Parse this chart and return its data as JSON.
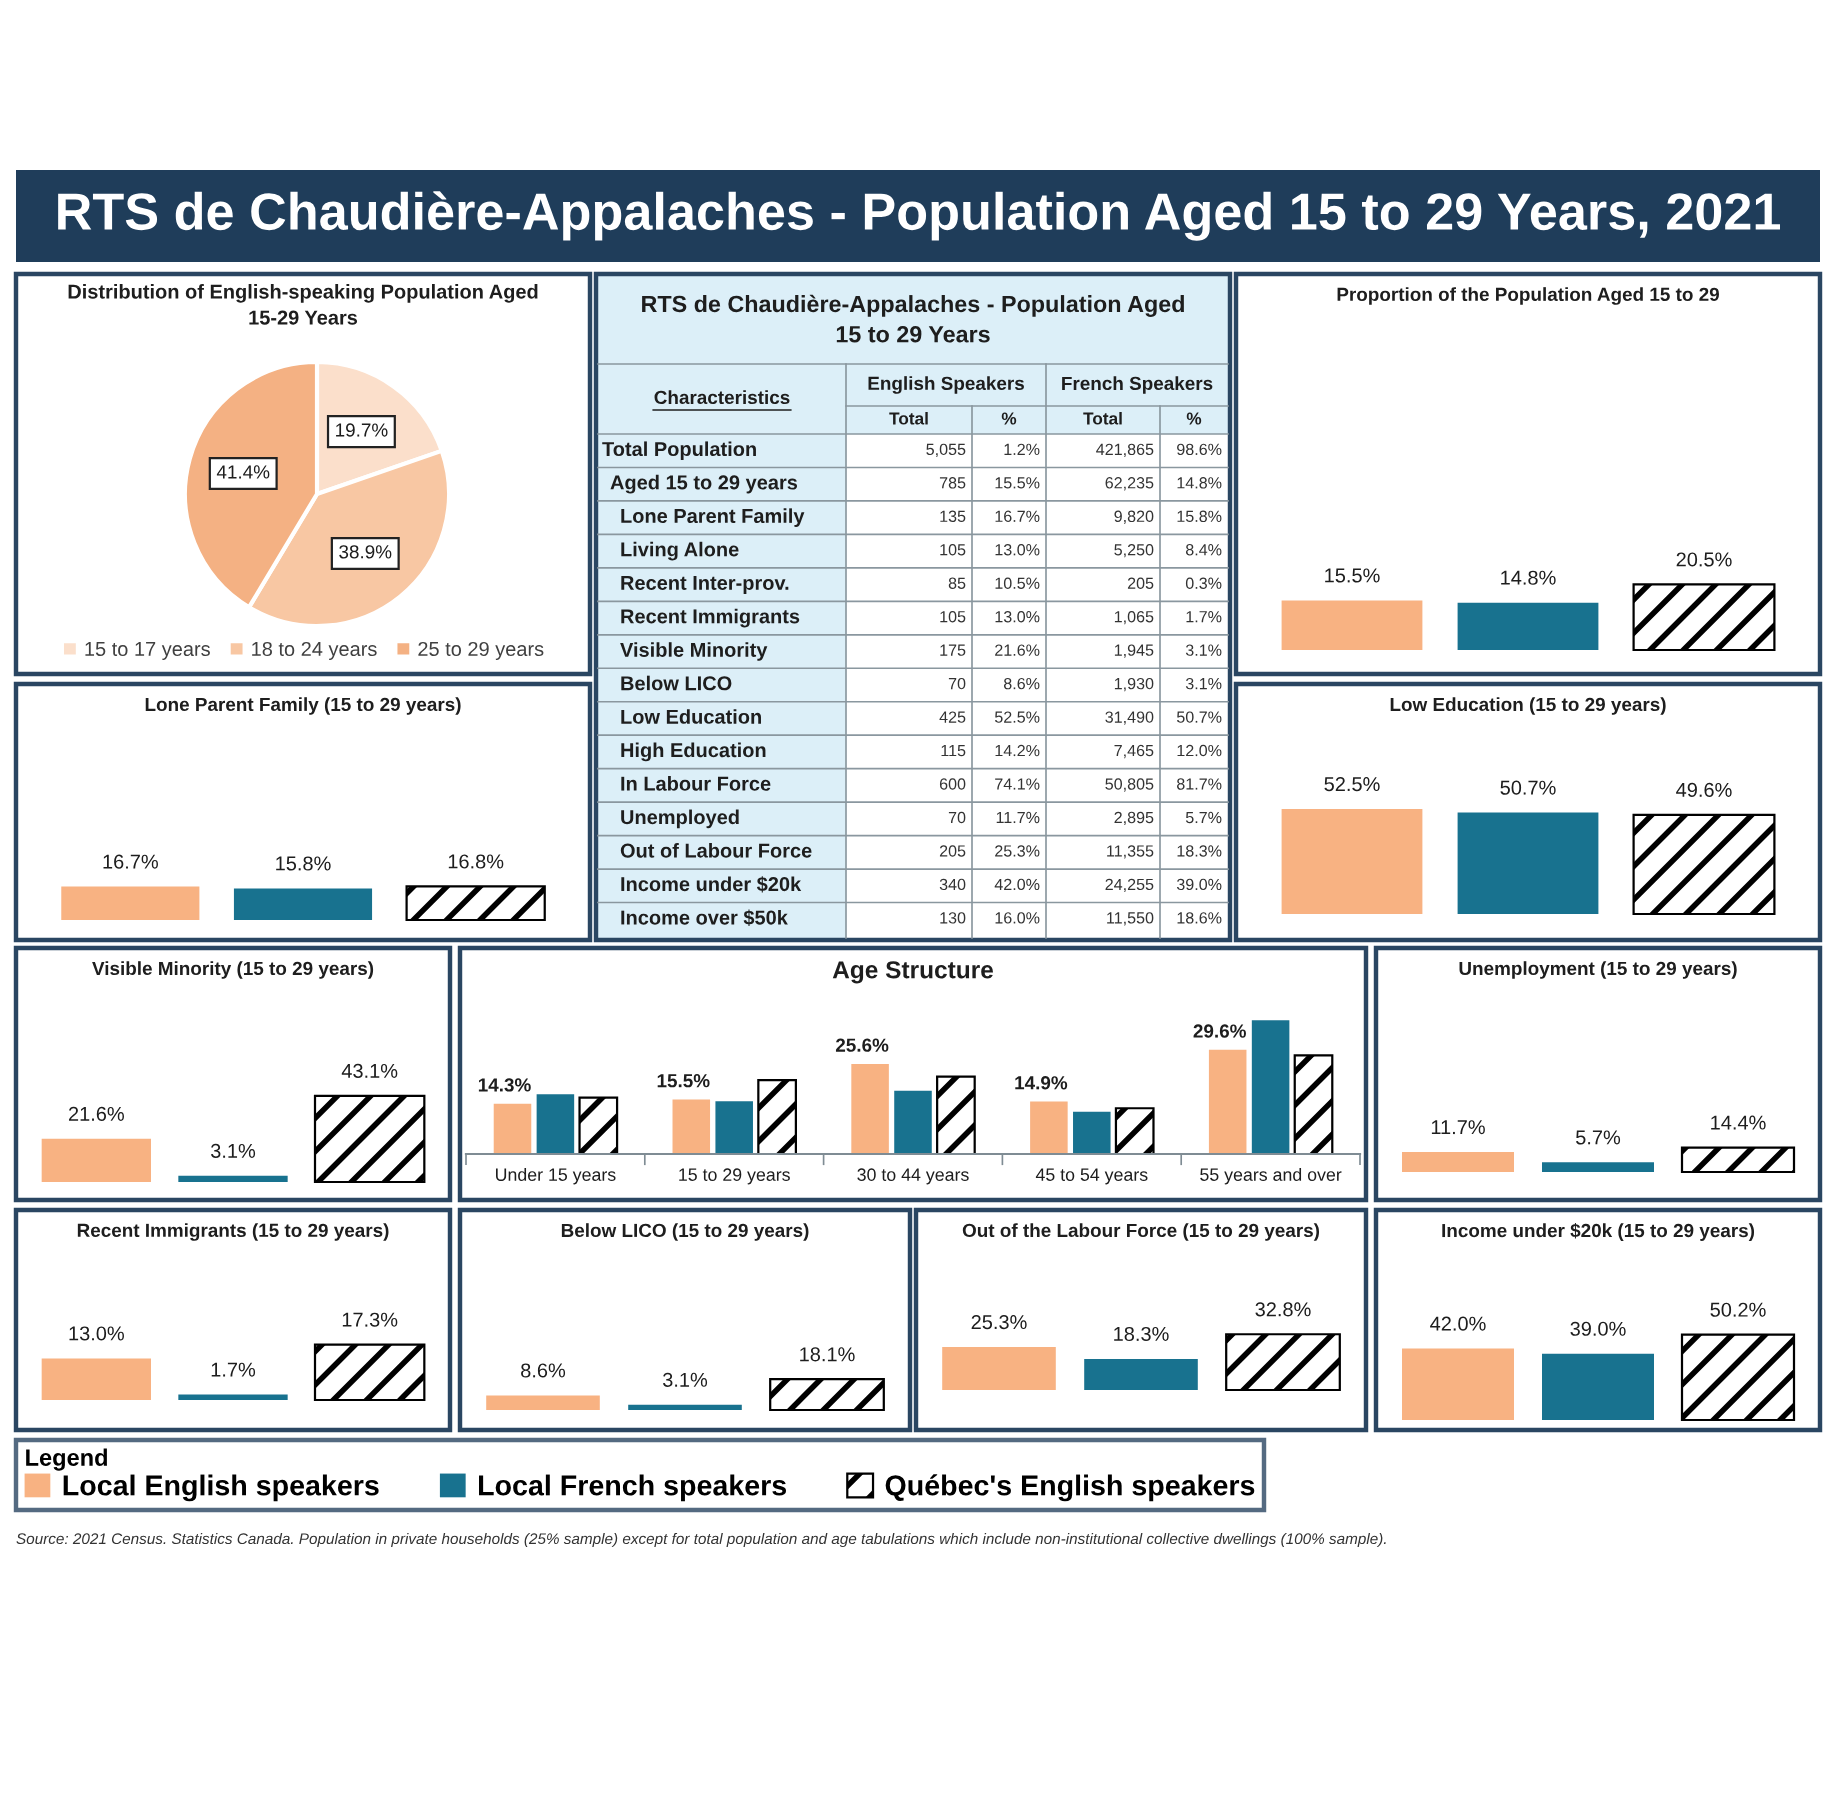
{
  "chart_data": [
    {
      "type": "other",
      "title": "RTS de Chaudière-Appalaches - Population Aged 15 to 29 Years, 2021",
      "annotations": [
        "Source: 2021 Census. Statistics Canada. Population in private households (25% sample) except for total population and age tabulations which include non-institutional collective dwellings (100% sample)."
      ]
    },
    {
      "type": "pie",
      "title": "Distribution of English-speaking Population Aged 15-29 Years",
      "categories": [
        "15 to 17 years",
        "18 to 24 years",
        "25 to 29 years"
      ],
      "values": [
        19.7,
        38.9,
        41.4
      ],
      "colors": [
        "#fbdfcb",
        "#f8c7a3",
        "#f4b183"
      ],
      "value_labels": [
        "19.7%",
        "38.9%",
        "41.4%"
      ],
      "legend": "bottom"
    },
    {
      "type": "other",
      "title": "RTS de Chaudière-Appalaches - Population Aged 15 to 29 Years",
      "ylabel": "Characteristics",
      "annotations": [
        "English Speakers",
        "French Speakers"
      ],
      "categories": [
        "Total",
        "%",
        "Total",
        "%"
      ],
      "y_categories": [
        "Total Population",
        "Aged 15 to 29 years",
        "Lone Parent Family",
        "Living Alone",
        "Recent Inter-prov.",
        "Recent Immigrants",
        "Visible Minority",
        "Below LICO",
        "Low Education",
        "High Education",
        "In Labour Force",
        "Unemployed",
        "Out of Labour Force",
        "Income under $20k",
        "Income over $50k"
      ],
      "cell_labels": [
        [
          "5,055",
          "1.2%",
          "421,865",
          "98.6%"
        ],
        [
          "785",
          "15.5%",
          "62,235",
          "14.8%"
        ],
        [
          "135",
          "16.7%",
          "9,820",
          "15.8%"
        ],
        [
          "105",
          "13.0%",
          "5,250",
          "8.4%"
        ],
        [
          "85",
          "10.5%",
          "205",
          "0.3%"
        ],
        [
          "105",
          "13.0%",
          "1,065",
          "1.7%"
        ],
        [
          "175",
          "21.6%",
          "1,945",
          "3.1%"
        ],
        [
          "70",
          "8.6%",
          "1,930",
          "3.1%"
        ],
        [
          "425",
          "52.5%",
          "31,490",
          "50.7%"
        ],
        [
          "115",
          "14.2%",
          "7,465",
          "12.0%"
        ],
        [
          "600",
          "74.1%",
          "50,805",
          "81.7%"
        ],
        [
          "70",
          "11.7%",
          "2,895",
          "5.7%"
        ],
        [
          "205",
          "25.3%",
          "11,355",
          "18.3%"
        ],
        [
          "340",
          "42.0%",
          "24,255",
          "39.0%"
        ],
        [
          "130",
          "16.0%",
          "11,550",
          "18.6%"
        ]
      ]
    },
    {
      "type": "bar",
      "title": "Proportion of the Population Aged 15 to 29",
      "categories": [
        null,
        null,
        null
      ],
      "values": [
        15.5,
        14.8,
        20.5
      ],
      "colors": [
        "#f8b282",
        "#18728f",
        "#000000"
      ],
      "value_labels": [
        "15.5%",
        "14.8%",
        "20.5%"
      ],
      "tick_labels": false
    },
    {
      "type": "bar",
      "title": "Lone Parent Family (15 to 29 years)",
      "categories": [
        null,
        null,
        null
      ],
      "values": [
        16.7,
        15.8,
        16.8
      ],
      "colors": [
        "#f8b282",
        "#18728f",
        "#000000"
      ],
      "value_labels": [
        "16.7%",
        "15.8%",
        "16.8%"
      ],
      "tick_labels": false
    },
    {
      "type": "bar",
      "title": "Low Education (15 to 29 years)",
      "categories": [
        null,
        null,
        null
      ],
      "values": [
        52.5,
        50.7,
        49.6
      ],
      "colors": [
        "#f8b282",
        "#18728f",
        "#000000"
      ],
      "value_labels": [
        "52.5%",
        "50.7%",
        "49.6%"
      ],
      "tick_labels": false
    },
    {
      "type": "bar",
      "title": "Visible Minority (15 to 29 years)",
      "categories": [
        null,
        null,
        null
      ],
      "values": [
        21.6,
        3.1,
        43.1
      ],
      "colors": [
        "#f8b282",
        "#18728f",
        "#000000"
      ],
      "value_labels": [
        "21.6%",
        "3.1%",
        "43.1%"
      ],
      "tick_labels": false
    },
    {
      "type": "bar",
      "title": "Age Structure",
      "categories": [
        "Under 15 years",
        "15 to 29 years",
        "30 to 44 years",
        "45 to 54 years",
        "55 years and over"
      ],
      "series": [
        {
          "name": "Local English speakers",
          "color": "#f8b282",
          "values": [
            14.3,
            15.5,
            25.6,
            14.9,
            29.6
          ],
          "value_labels": [
            "14.3%",
            "15.5%",
            "25.6%",
            "14.9%",
            "29.6%"
          ]
        },
        {
          "name": "Local French speakers",
          "color": "#18728f",
          "values": [
            17,
            15,
            18,
            12,
            38
          ]
        },
        {
          "name": "Québec's English speakers",
          "color": "#000000",
          "values": [
            16,
            21,
            22,
            13,
            28
          ]
        }
      ],
      "tick_labels": "x",
      "legend": "bottom",
      "legend_title": "Legend"
    },
    {
      "type": "bar",
      "title": "Unemployment (15 to 29 years)",
      "categories": [
        null,
        null,
        null
      ],
      "values": [
        11.7,
        5.7,
        14.4
      ],
      "colors": [
        "#f8b282",
        "#18728f",
        "#000000"
      ],
      "value_labels": [
        "11.7%",
        "5.7%",
        "14.4%"
      ],
      "tick_labels": false
    },
    {
      "type": "bar",
      "title": "Recent Immigrants (15 to 29 years)",
      "categories": [
        null,
        null,
        null
      ],
      "values": [
        13.0,
        1.7,
        17.3
      ],
      "colors": [
        "#f8b282",
        "#18728f",
        "#000000"
      ],
      "value_labels": [
        "13.0%",
        "1.7%",
        "17.3%"
      ],
      "tick_labels": false
    },
    {
      "type": "bar",
      "title": "Below LICO (15 to 29 years)",
      "categories": [
        null,
        null,
        null
      ],
      "values": [
        8.6,
        3.1,
        18.1
      ],
      "colors": [
        "#f8b282",
        "#18728f",
        "#000000"
      ],
      "value_labels": [
        "8.6%",
        "3.1%",
        "18.1%"
      ],
      "tick_labels": false
    },
    {
      "type": "bar",
      "title": "Out of the Labour Force (15 to 29 years)",
      "categories": [
        null,
        null,
        null
      ],
      "values": [
        25.3,
        18.3,
        32.8
      ],
      "colors": [
        "#f8b282",
        "#18728f",
        "#000000"
      ],
      "value_labels": [
        "25.3%",
        "18.3%",
        "32.8%"
      ],
      "tick_labels": false
    },
    {
      "type": "bar",
      "title": "Income under $20k (15 to 29 years)",
      "categories": [
        null,
        null,
        null
      ],
      "values": [
        42.0,
        39.0,
        50.2
      ],
      "colors": [
        "#f8b282",
        "#18728f",
        "#000000"
      ],
      "value_labels": [
        "42.0%",
        "39.0%",
        "50.2%"
      ],
      "tick_labels": false
    }
  ]
}
